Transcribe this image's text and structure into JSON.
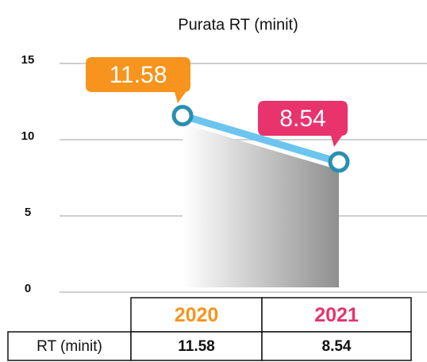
{
  "chart_data": {
    "type": "line",
    "title": "Purata RT (minit)",
    "categories": [
      "2020",
      "2021"
    ],
    "values": [
      11.58,
      8.54
    ],
    "category_colors": [
      "#f7941d",
      "#e8336d"
    ],
    "line_color": "#6cc5ee",
    "marker_color": "#2a8fb0",
    "ylim": [
      0,
      15
    ],
    "yticks": [
      0,
      5,
      10,
      15
    ],
    "grid": true,
    "row_label": "RT (minit)"
  }
}
